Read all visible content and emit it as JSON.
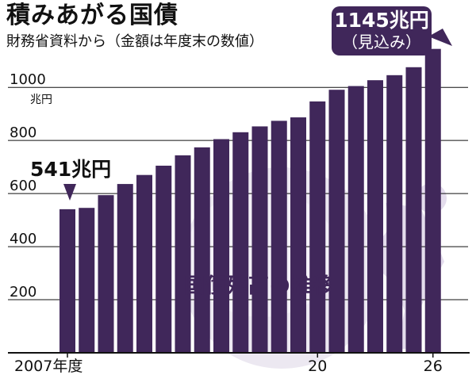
{
  "header": {
    "title": "積みあがる国債",
    "subtitle": "財務省資料から（金額は年度末の数値）"
  },
  "annotations": {
    "start_value": "541兆円",
    "end_value": "1145兆円",
    "end_note": "（見込み）",
    "unit": "兆円",
    "silhouette_text": "国債残高の推移"
  },
  "colors": {
    "bar": "#40275a",
    "silhouette": "#ece8f1",
    "silhouette_dark": "#dcd3e6",
    "axis": "#111111"
  },
  "chart_data": {
    "type": "bar",
    "title": "積みあがる国債",
    "subtitle": "財務省資料から（金額は年度末の数値）",
    "ylabel": "兆円",
    "categories": [
      "2007",
      "2008",
      "2009",
      "2010",
      "2011",
      "2012",
      "2013",
      "2014",
      "2015",
      "2016",
      "2017",
      "2018",
      "2019",
      "2020",
      "2021",
      "2022",
      "2023",
      "2024",
      "2025",
      "2026"
    ],
    "values": [
      541,
      546,
      594,
      636,
      670,
      705,
      744,
      774,
      805,
      831,
      853,
      874,
      887,
      947,
      991,
      1005,
      1027,
      1046,
      1076,
      1145
    ],
    "ylim": [
      0,
      1150
    ],
    "yticks": [
      200,
      400,
      600,
      800,
      1000
    ],
    "xtick_labels": [
      {
        "category": "2007",
        "label": "2007年度"
      },
      {
        "category": "2020",
        "label": "20"
      },
      {
        "category": "2026",
        "label": "26"
      }
    ],
    "grid": true
  }
}
